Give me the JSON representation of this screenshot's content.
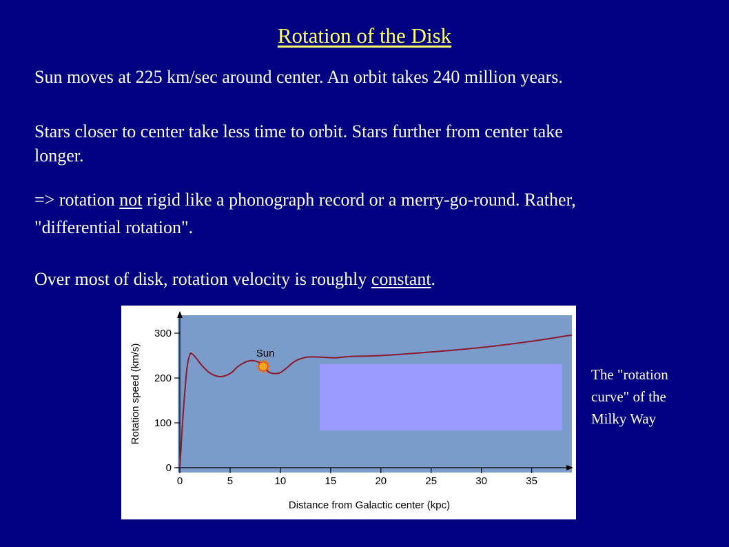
{
  "slide": {
    "title": "Rotation of the Disk",
    "line1": "Sun moves at 225 km/sec around center.  An orbit takes 240 million years.",
    "line2a": "Stars closer to center take less time to orbit.  Stars further from center take",
    "line2b": "longer.",
    "line3a_pre": "=> rotation ",
    "line3a_u": "not",
    "line3a_post": " rigid like a phonograph record or a merry-go-round.  Rather,",
    "line3b": "\"differential rotation\".",
    "line4_pre": "Over most of disk, rotation velocity is roughly ",
    "line4_u": "constant",
    "line4_post": ".",
    "caption1": "The \"rotation",
    "caption2": "curve\" of the",
    "caption3": "Milky Way"
  },
  "colors": {
    "background": "#000080",
    "title": "#ffff66",
    "plot_bg": "#7b9bcb",
    "curve": "#8b1a2b",
    "overlay_box": "#9999ff",
    "sun": "#f5a623"
  },
  "chart_data": {
    "type": "line",
    "xlabel": "Distance from Galactic center (kpc)",
    "ylabel": "Rotation speed (km/s)",
    "xlim": [
      0,
      39
    ],
    "ylim": [
      0,
      340
    ],
    "xticks": [
      0,
      5,
      10,
      15,
      20,
      25,
      30,
      35
    ],
    "yticks": [
      0,
      100,
      200,
      300
    ],
    "series": [
      {
        "x": [
          0,
          0.3,
          0.7,
          1.0,
          1.2,
          1.6,
          2.2,
          3,
          4,
          5,
          5.8,
          6.7,
          7.5,
          8.3,
          8.8,
          9.4,
          10,
          10.6,
          11.5,
          12.5,
          13.5,
          14.5,
          15.5,
          17,
          20,
          25,
          30,
          35,
          39
        ],
        "y": [
          0,
          110,
          220,
          252,
          254,
          245,
          228,
          211,
          203,
          210,
          226,
          237,
          238,
          228,
          214,
          210,
          212,
          222,
          238,
          246,
          247,
          246,
          245,
          248,
          250,
          258,
          268,
          282,
          296
        ]
      }
    ],
    "annotations": [
      {
        "text": "Sun",
        "x": 8.3,
        "y": 226
      }
    ]
  }
}
